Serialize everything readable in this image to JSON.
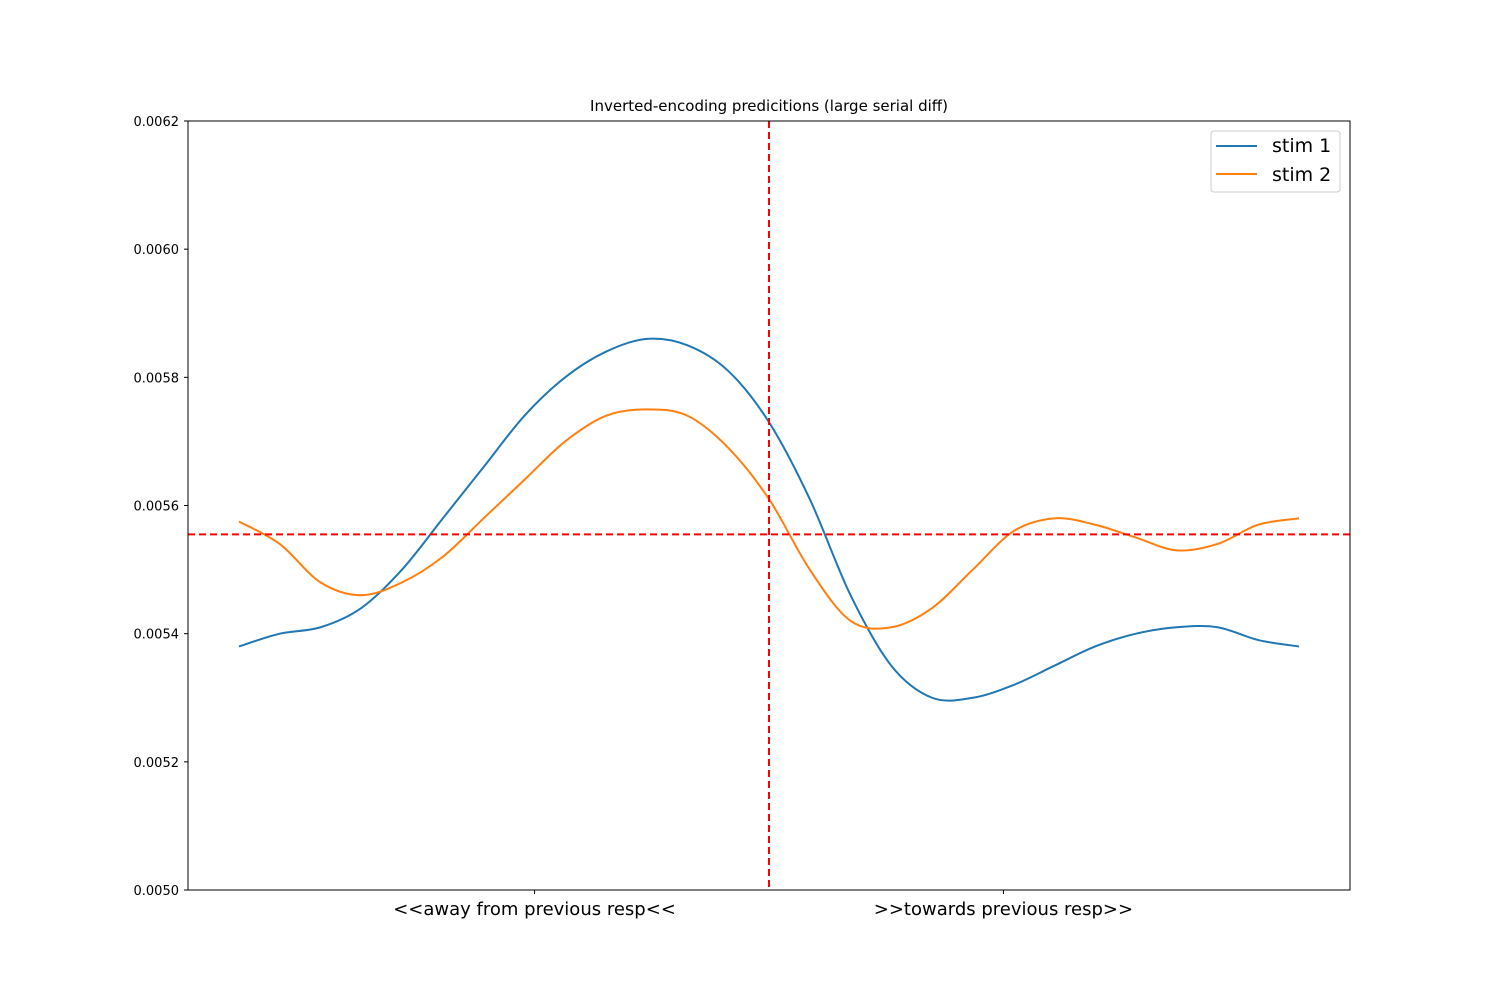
{
  "chart_data": {
    "type": "line",
    "title": "Inverted-encoding predicitions (large serial diff)",
    "xlabel": "",
    "ylabel": "",
    "x_tick_labels": [
      {
        "x": -23,
        "label": "<<away from previous resp<<"
      },
      {
        "x": 23,
        "label": ">>towards previous resp>>"
      }
    ],
    "xlim": [
      -57,
      57
    ],
    "ylim": [
      0.005,
      0.0062
    ],
    "y_ticks": [
      "0.0050",
      "0.0052",
      "0.0054",
      "0.0056",
      "0.0058",
      "0.0060",
      "0.0062"
    ],
    "x": [
      -52,
      -48,
      -44,
      -40,
      -36,
      -32,
      -28,
      -24,
      -20,
      -16,
      -12,
      -8,
      -4,
      0,
      4,
      8,
      12,
      16,
      20,
      24,
      28,
      32,
      36,
      40,
      44,
      48,
      52
    ],
    "series": [
      {
        "name": "stim 1",
        "color": "#1f77b4",
        "values": [
          0.00538,
          0.0054,
          0.00541,
          0.00544,
          0.0055,
          0.00558,
          0.00566,
          0.00574,
          0.0058,
          0.00584,
          0.00586,
          0.00585,
          0.00581,
          0.00573,
          0.00561,
          0.00546,
          0.00535,
          0.0053,
          0.0053,
          0.00532,
          0.00535,
          0.00538,
          0.0054,
          0.00541,
          0.00541,
          0.00539,
          0.00538
        ]
      },
      {
        "name": "stim 2",
        "color": "#ff7f0e",
        "values": [
          0.005575,
          0.00554,
          0.00548,
          0.00546,
          0.00548,
          0.00552,
          0.00558,
          0.00564,
          0.0057,
          0.00574,
          0.00575,
          0.00574,
          0.00569,
          0.00561,
          0.0055,
          0.00542,
          0.00541,
          0.00544,
          0.0055,
          0.00556,
          0.00558,
          0.00557,
          0.00555,
          0.00553,
          0.00554,
          0.00557,
          0.00558
        ]
      }
    ],
    "reference_lines": [
      {
        "orientation": "vertical",
        "x": 0,
        "color": "#ff0000",
        "style": "dashed"
      },
      {
        "orientation": "horizontal",
        "y": 0.005555,
        "color": "#ff0000",
        "style": "dashed"
      }
    ],
    "legend": {
      "position": "top-right"
    },
    "grid": false
  }
}
